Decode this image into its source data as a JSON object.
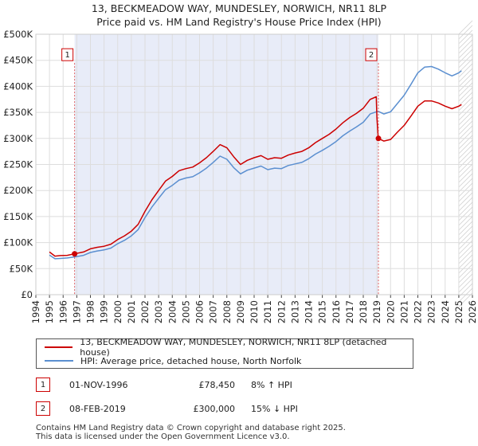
{
  "chart_data": {
    "type": "line",
    "title": "13, BECKMEADOW WAY, MUNDESLEY, NORWICH, NR11 8LP",
    "subtitle": "Price paid vs. HM Land Registry's House Price Index (HPI)",
    "x_range": [
      1994,
      2026
    ],
    "y_range": [
      0,
      500000
    ],
    "x_ticks": [
      "1994",
      "1995",
      "1996",
      "1997",
      "1998",
      "1999",
      "2000",
      "2001",
      "2002",
      "2003",
      "2004",
      "2005",
      "2006",
      "2007",
      "2008",
      "2009",
      "2010",
      "2011",
      "2012",
      "2013",
      "2014",
      "2015",
      "2016",
      "2017",
      "2018",
      "2019",
      "2020",
      "2021",
      "2022",
      "2023",
      "2024",
      "2025",
      "2026"
    ],
    "y_ticks": [
      {
        "value": 0,
        "label": "£0"
      },
      {
        "value": 50000,
        "label": "£50K"
      },
      {
        "value": 100000,
        "label": "£100K"
      },
      {
        "value": 150000,
        "label": "£150K"
      },
      {
        "value": 200000,
        "label": "£200K"
      },
      {
        "value": 250000,
        "label": "£250K"
      },
      {
        "value": 300000,
        "label": "£300K"
      },
      {
        "value": 350000,
        "label": "£350K"
      },
      {
        "value": 400000,
        "label": "£400K"
      },
      {
        "value": 450000,
        "label": "£450K"
      },
      {
        "value": 500000,
        "label": "£500K"
      }
    ],
    "grid": true,
    "colors": {
      "property": "#cc0000",
      "hpi": "#5b8fd0",
      "shade": "#e8ecf8",
      "marker_line": "#e06060"
    },
    "series": [
      {
        "name": "13, BECKMEADOW WAY, MUNDESLEY, NORWICH, NR11 8LP (detached house)",
        "points": [
          [
            1995.0,
            82000
          ],
          [
            1995.4,
            74000
          ],
          [
            1995.8,
            75000
          ],
          [
            1996.3,
            75500
          ],
          [
            1996.84,
            78450
          ],
          [
            1997.5,
            82000
          ],
          [
            1998.0,
            88000
          ],
          [
            1998.5,
            91000
          ],
          [
            1999.0,
            93000
          ],
          [
            1999.5,
            97000
          ],
          [
            2000.0,
            106000
          ],
          [
            2000.5,
            113000
          ],
          [
            2001.0,
            122000
          ],
          [
            2001.5,
            135000
          ],
          [
            2002.0,
            160000
          ],
          [
            2002.5,
            182000
          ],
          [
            2003.0,
            200000
          ],
          [
            2003.5,
            218000
          ],
          [
            2004.0,
            227000
          ],
          [
            2004.5,
            238000
          ],
          [
            2005.0,
            242000
          ],
          [
            2005.5,
            245000
          ],
          [
            2006.0,
            253000
          ],
          [
            2006.5,
            263000
          ],
          [
            2007.0,
            275000
          ],
          [
            2007.5,
            288000
          ],
          [
            2008.0,
            282000
          ],
          [
            2008.5,
            265000
          ],
          [
            2009.0,
            250000
          ],
          [
            2009.5,
            258000
          ],
          [
            2010.0,
            263000
          ],
          [
            2010.5,
            267000
          ],
          [
            2011.0,
            260000
          ],
          [
            2011.5,
            263000
          ],
          [
            2012.0,
            262000
          ],
          [
            2012.5,
            268000
          ],
          [
            2013.0,
            272000
          ],
          [
            2013.5,
            275000
          ],
          [
            2014.0,
            282000
          ],
          [
            2014.5,
            292000
          ],
          [
            2015.0,
            300000
          ],
          [
            2015.5,
            308000
          ],
          [
            2016.0,
            318000
          ],
          [
            2016.5,
            330000
          ],
          [
            2017.0,
            340000
          ],
          [
            2017.5,
            348000
          ],
          [
            2018.0,
            358000
          ],
          [
            2018.5,
            375000
          ],
          [
            2018.95,
            380000
          ],
          [
            2019.0,
            340000
          ],
          [
            2019.1,
            300000
          ],
          [
            2019.5,
            295000
          ],
          [
            2020.0,
            298000
          ],
          [
            2020.5,
            312000
          ],
          [
            2021.0,
            325000
          ],
          [
            2021.5,
            343000
          ],
          [
            2022.0,
            362000
          ],
          [
            2022.5,
            372000
          ],
          [
            2023.0,
            372000
          ],
          [
            2023.5,
            368000
          ],
          [
            2024.0,
            362000
          ],
          [
            2024.5,
            357000
          ],
          [
            2025.0,
            362000
          ],
          [
            2025.2,
            365000
          ]
        ]
      },
      {
        "name": "HPI: Average price, detached house, North Norfolk",
        "points": [
          [
            1995.0,
            76000
          ],
          [
            1995.4,
            69000
          ],
          [
            1995.8,
            69500
          ],
          [
            1996.3,
            70500
          ],
          [
            1996.84,
            72500
          ],
          [
            1997.5,
            75500
          ],
          [
            1998.0,
            81000
          ],
          [
            1998.5,
            84000
          ],
          [
            1999.0,
            86000
          ],
          [
            1999.5,
            89500
          ],
          [
            2000.0,
            98000
          ],
          [
            2000.5,
            104500
          ],
          [
            2001.0,
            113000
          ],
          [
            2001.5,
            125000
          ],
          [
            2002.0,
            148000
          ],
          [
            2002.5,
            168000
          ],
          [
            2003.0,
            185000
          ],
          [
            2003.5,
            201500
          ],
          [
            2004.0,
            210000
          ],
          [
            2004.5,
            220000
          ],
          [
            2005.0,
            224000
          ],
          [
            2005.5,
            226500
          ],
          [
            2006.0,
            234000
          ],
          [
            2006.5,
            243000
          ],
          [
            2007.0,
            254000
          ],
          [
            2007.5,
            266000
          ],
          [
            2008.0,
            260000
          ],
          [
            2008.5,
            244000
          ],
          [
            2009.0,
            232000
          ],
          [
            2009.5,
            239000
          ],
          [
            2010.0,
            243000
          ],
          [
            2010.5,
            247000
          ],
          [
            2011.0,
            240000
          ],
          [
            2011.5,
            243000
          ],
          [
            2012.0,
            242000
          ],
          [
            2012.5,
            248000
          ],
          [
            2013.0,
            251000
          ],
          [
            2013.5,
            254000
          ],
          [
            2014.0,
            261000
          ],
          [
            2014.5,
            270000
          ],
          [
            2015.0,
            277000
          ],
          [
            2015.5,
            285000
          ],
          [
            2016.0,
            294000
          ],
          [
            2016.5,
            305000
          ],
          [
            2017.0,
            314000
          ],
          [
            2017.5,
            322000
          ],
          [
            2018.0,
            331000
          ],
          [
            2018.5,
            347000
          ],
          [
            2018.95,
            351000
          ],
          [
            2019.1,
            352000
          ],
          [
            2019.5,
            347000
          ],
          [
            2020.0,
            351000
          ],
          [
            2020.5,
            367000
          ],
          [
            2021.0,
            383000
          ],
          [
            2021.5,
            404000
          ],
          [
            2022.0,
            426000
          ],
          [
            2022.5,
            437000
          ],
          [
            2023.0,
            438000
          ],
          [
            2023.5,
            433000
          ],
          [
            2024.0,
            426000
          ],
          [
            2024.5,
            420000
          ],
          [
            2025.0,
            426000
          ],
          [
            2025.2,
            430000
          ]
        ]
      }
    ],
    "sales": [
      {
        "id": "1",
        "x": 1996.84,
        "price": 78450
      },
      {
        "id": "2",
        "x": 2019.11,
        "price": 300000
      }
    ],
    "markers_top_y": 460000
  },
  "legend": {
    "property_label": "13, BECKMEADOW WAY, MUNDESLEY, NORWICH, NR11 8LP (detached house)",
    "hpi_label": "HPI: Average price, detached house, North Norfolk"
  },
  "sales_table": [
    {
      "id": "1",
      "date": "01-NOV-1996",
      "price": "£78,450",
      "hpi": "8% ↑ HPI"
    },
    {
      "id": "2",
      "date": "08-FEB-2019",
      "price": "£300,000",
      "hpi": "15% ↓ HPI"
    }
  ],
  "footer": {
    "line1": "Contains HM Land Registry data © Crown copyright and database right 2025.",
    "line2": "This data is licensed under the Open Government Licence v3.0."
  }
}
